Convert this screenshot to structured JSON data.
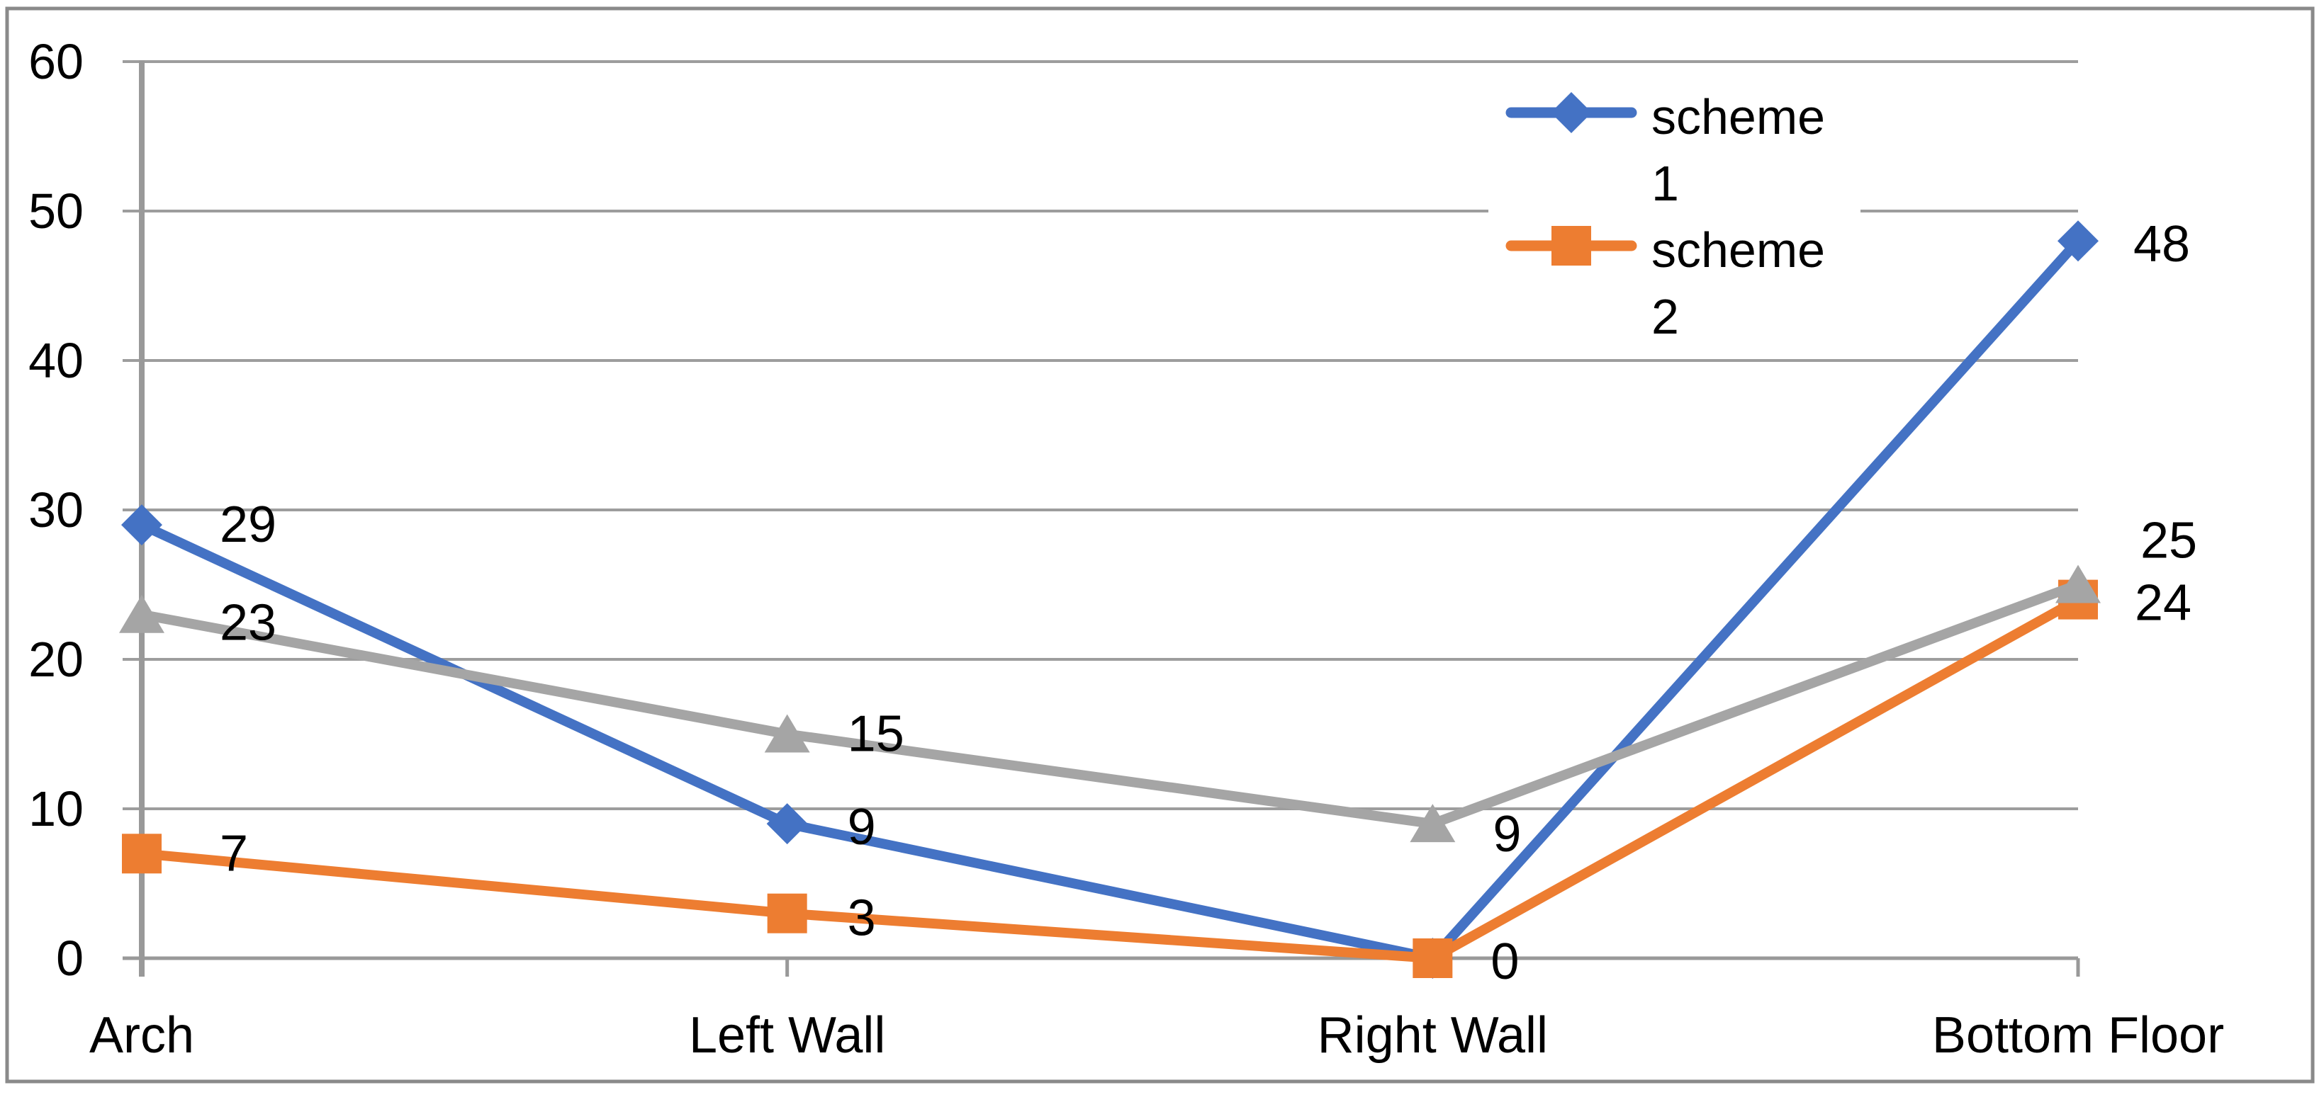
{
  "chart_data": {
    "type": "line",
    "title": "",
    "xlabel": "",
    "ylabel": "",
    "categories": [
      "Arch",
      "Left Wall",
      "Right Wall",
      "Bottom Floor"
    ],
    "series": [
      {
        "name": "scheme 1",
        "color": "#4472C4",
        "marker": "diamond",
        "values": [
          29,
          9,
          0,
          48
        ],
        "data_labels": [
          "29",
          "9",
          null,
          "48"
        ],
        "label_dx": [
          110,
          85,
          0,
          78
        ],
        "label_dy": [
          0,
          5,
          0,
          5
        ],
        "in_legend": true
      },
      {
        "name": "scheme 2",
        "color": "#ED7D31",
        "marker": "square",
        "values": [
          7,
          3,
          0,
          24
        ],
        "data_labels": [
          "7",
          "3",
          "0",
          "24"
        ],
        "label_dx": [
          110,
          85,
          82,
          80
        ],
        "label_dy": [
          0,
          7,
          5,
          5
        ],
        "in_legend": true
      },
      {
        "name": "",
        "color": "#A5A5A5",
        "marker": "triangle",
        "values": [
          23,
          15,
          9,
          25
        ],
        "data_labels": [
          "23",
          "15",
          "9",
          "25"
        ],
        "label_dx": [
          110,
          85,
          85,
          88
        ],
        "label_dy": [
          12,
          0,
          15,
          -62
        ],
        "in_legend": false
      }
    ],
    "ylim": [
      0,
      60
    ],
    "ytick_step": 10,
    "ytick_labels": [
      "0",
      "10",
      "20",
      "30",
      "40",
      "50",
      "60"
    ],
    "grid": true,
    "legend": {
      "position": "top-right-inside",
      "entries": [
        "scheme 1",
        "scheme 2"
      ]
    }
  },
  "colors": {
    "grid": "#9D9D9D",
    "axis": "#999999",
    "border": "#8A8A8A",
    "text": "#000000",
    "legend_bg": "#FFFFFF",
    "background": "#FFFFFF"
  }
}
